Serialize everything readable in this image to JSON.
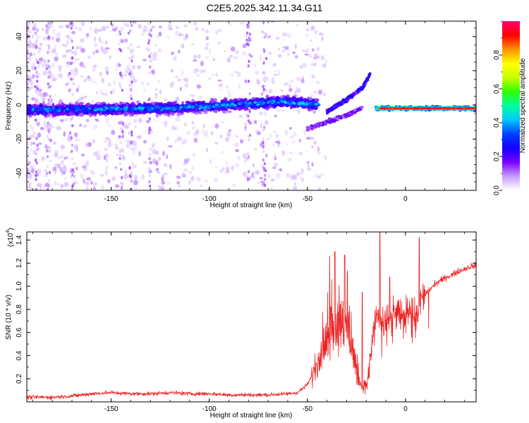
{
  "figure_title": "C2E5.2025.342.11.34.G11",
  "chart_data": [
    {
      "type": "heatmap",
      "title": "C2E5.2025.342.11.34.G11",
      "xlabel": "Height of straight line (km)",
      "ylabel": "Frequency (Hz)",
      "xlim": [
        -193,
        36
      ],
      "ylim": [
        -50,
        49
      ],
      "x_ticks": [
        -150,
        -100,
        -50,
        0
      ],
      "x_tick_labels": [
        "-150",
        "-100",
        "-50",
        "0"
      ],
      "y_ticks": [
        -40,
        -20,
        0,
        20,
        40
      ],
      "y_tick_labels": [
        "-40",
        "-20",
        "0",
        "20",
        "40"
      ],
      "colorbar": {
        "label": "Normalized spectral amplitude",
        "range": [
          0,
          1
        ],
        "ticks": [
          0.0,
          0.2,
          0.4,
          0.6,
          0.8
        ],
        "tick_labels": [
          "0.0",
          "0.2",
          "0.4",
          "0.6",
          "0.8"
        ],
        "colormap": [
          "#ffffff",
          "#c79bff",
          "#7a00ff",
          "#1200ff",
          "#0040ff",
          "#00c8ff",
          "#00ffa0",
          "#30ff00",
          "#c8ff00",
          "#ffff00",
          "#ff9000",
          "#ff0000",
          "#ff0070"
        ]
      },
      "features": [
        {
          "name": "main band",
          "x": [
            -193,
            -120,
            -60,
            -45
          ],
          "y": [
            -3,
            -2,
            2,
            0
          ],
          "amplitude": 0.3
        },
        {
          "name": "rising branch",
          "x": [
            -40,
            -30,
            -22,
            -18
          ],
          "y": [
            -4,
            3,
            10,
            18
          ],
          "amplitude": 0.2
        },
        {
          "name": "falling branch",
          "x": [
            -50,
            -40,
            -30,
            -22
          ],
          "y": [
            -14,
            -10,
            -6,
            -2
          ],
          "amplitude": 0.15
        },
        {
          "name": "strong line",
          "x": [
            -15,
            36
          ],
          "y": [
            -2,
            -2
          ],
          "amplitude": 0.95
        }
      ]
    },
    {
      "type": "line",
      "xlabel": "Height of straight line (km)",
      "ylabel": "SNR (10 * v/v)",
      "yscale_label": "(x10",
      "yscale_exp": "4",
      "xlim": [
        -193,
        36
      ],
      "ylim": [
        0,
        1.47
      ],
      "x_ticks": [
        -150,
        -100,
        -50,
        0
      ],
      "x_tick_labels": [
        "-150",
        "-100",
        "-50",
        "0"
      ],
      "y_ticks": [
        0.2,
        0.4,
        0.6,
        0.8,
        1.0,
        1.2,
        1.4
      ],
      "y_tick_labels": [
        "0.2",
        "0.4",
        "0.6",
        "0.8",
        "1.0",
        "1.2",
        "1.4"
      ],
      "series": [
        {
          "name": "SNR",
          "color": "#ee2222",
          "x": [
            -193,
            -180,
            -170,
            -160,
            -150,
            -140,
            -130,
            -120,
            -110,
            -100,
            -90,
            -80,
            -70,
            -60,
            -55,
            -50,
            -47,
            -44,
            -41,
            -38,
            -35,
            -32,
            -29,
            -27,
            -25,
            -23,
            -21,
            -19,
            -17,
            -15,
            -13,
            -11,
            -9,
            -7,
            -5,
            -3,
            -1,
            1,
            3,
            5,
            7,
            9,
            11,
            13,
            15,
            18,
            21,
            24,
            27,
            30,
            33,
            36
          ],
          "y": [
            0.04,
            0.04,
            0.05,
            0.07,
            0.08,
            0.07,
            0.07,
            0.08,
            0.07,
            0.07,
            0.06,
            0.06,
            0.06,
            0.07,
            0.08,
            0.15,
            0.25,
            0.38,
            0.5,
            0.6,
            0.66,
            0.7,
            0.6,
            0.45,
            0.3,
            0.15,
            0.12,
            0.2,
            0.5,
            0.75,
            0.7,
            0.65,
            0.7,
            0.72,
            0.75,
            0.8,
            0.68,
            0.8,
            0.85,
            0.7,
            0.82,
            0.9,
            0.95,
            0.98,
            1.02,
            1.05,
            1.08,
            1.1,
            1.13,
            1.15,
            1.17,
            1.18
          ],
          "peaks": [
            {
              "x": -13,
              "y": 1.47
            },
            {
              "x": 7,
              "y": 1.42
            },
            {
              "x": -36,
              "y": 1.3
            },
            {
              "x": -31,
              "y": 1.27
            },
            {
              "x": -22,
              "y": 0.95
            },
            {
              "x": -8,
              "y": 1.08
            }
          ]
        }
      ]
    }
  ]
}
